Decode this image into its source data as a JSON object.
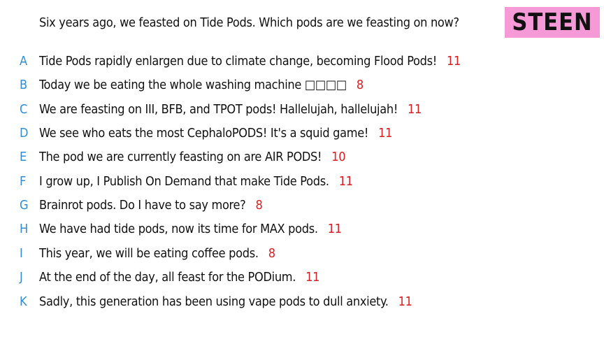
{
  "colors": {
    "badge_bg": "#f59ad6",
    "letter": "#2e8fd8",
    "score": "#dd1e1e",
    "text": "#111111"
  },
  "prompt": "Six years ago, we feasted on Tide Pods. Which pods are we feasting on now?",
  "badge": "STEEN",
  "options": [
    {
      "letter": "A",
      "text": "Tide Pods rapidly enlargen due to climate change, becoming Flood Pods!",
      "score": "11"
    },
    {
      "letter": "B",
      "text": "Today we be eating the whole washing machine □□□□",
      "score": "8"
    },
    {
      "letter": "C",
      "text": "We are feasting on III, BFB, and TPOT pods! Hallelujah, hallelujah!",
      "score": "11"
    },
    {
      "letter": "D",
      "text": "We see who eats the most CephaloPODS! It's a squid game!",
      "score": "11"
    },
    {
      "letter": "E",
      "text": "The pod we are currently feasting on are AIR PODS!",
      "score": "10"
    },
    {
      "letter": "F",
      "text": "I grow up, I Publish On Demand that make Tide Pods.",
      "score": "11"
    },
    {
      "letter": "G",
      "text": "Brainrot pods. Do I have to say more?",
      "score": "8"
    },
    {
      "letter": "H",
      "text": "We have had tide pods, now its time for MAX pods.",
      "score": "11"
    },
    {
      "letter": "I",
      "text": "This year, we will be eating coffee pods.",
      "score": "8"
    },
    {
      "letter": "J",
      "text": "At the end of the day, all feast for the PODium.",
      "score": "11"
    },
    {
      "letter": "K",
      "text": "Sadly, this generation has been using vape pods to dull anxiety.",
      "score": "11"
    }
  ]
}
